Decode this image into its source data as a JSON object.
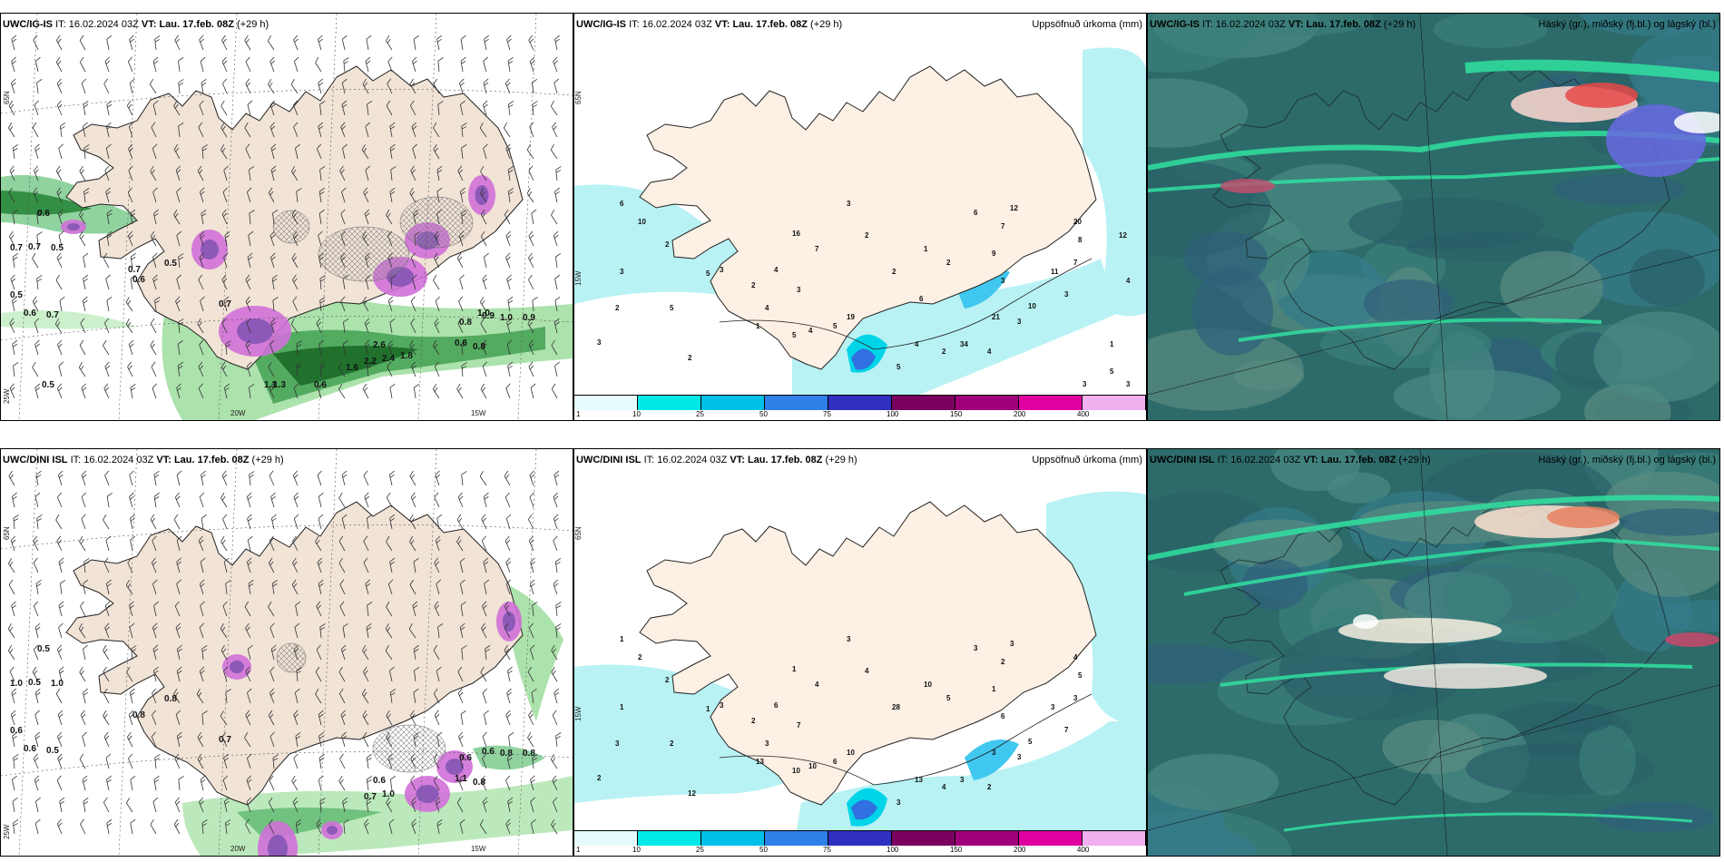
{
  "panels": [
    {
      "id": "tl",
      "model": "UWC/IG-IS",
      "it_label": "IT:",
      "it_value": "16.02.2024 03Z",
      "vt_label": "VT:",
      "vt_value": "Lau. 17.feb. 08Z",
      "lead": "(+29 h)",
      "title_right": "",
      "type": "wind-precip",
      "labels": [
        "0.6",
        "0.7",
        "0.7",
        "0.5",
        "0.5",
        "0.6",
        "0.7",
        "0.6",
        "0.5",
        "0.7",
        "0.8",
        "0.9",
        "1.0",
        "0.9",
        "0.8",
        "0.6",
        "2.6",
        "2.2",
        "2.4",
        "1.8",
        "1.6",
        "1.1",
        "0.6",
        "1.3",
        "0.5",
        "0.7",
        "1.0"
      ],
      "axis": {
        "lat": "65N",
        "lon1": "20W",
        "lon2": "15W",
        "lat2": "25W"
      }
    },
    {
      "id": "tm",
      "model": "UWC/IG-IS",
      "it_label": "IT:",
      "it_value": "16.02.2024 03Z",
      "vt_label": "VT:",
      "vt_value": "Lau. 17.feb. 08Z",
      "lead": "(+29 h)",
      "title_right": "Uppsöfnuð úrkoma (mm)",
      "type": "accum",
      "labels": [
        "6",
        "10",
        "2",
        "3",
        "2",
        "3",
        "5",
        "4",
        "5",
        "3",
        "16",
        "7",
        "4",
        "2",
        "3",
        "1",
        "2",
        "5",
        "4",
        "5",
        "19",
        "4",
        "5",
        "34",
        "21",
        "20",
        "8",
        "7",
        "11",
        "3",
        "10",
        "3",
        "4",
        "2",
        "3",
        "2",
        "1",
        "9",
        "7",
        "12",
        "6",
        "3",
        "2",
        "2",
        "6",
        "12",
        "4",
        "1",
        "5",
        "3",
        "3"
      ],
      "axis": {
        "lat": "65N",
        "lon": "15W"
      }
    },
    {
      "id": "tr",
      "model": "UWC/IG-IS",
      "it_label": "IT:",
      "it_value": "16.02.2024 03Z",
      "vt_label": "VT:",
      "vt_value": "Lau. 17.feb. 08Z",
      "lead": "(+29 h)",
      "title_right": "Háský (gr.), miðský (fj.bl.) og lágský (bl.)",
      "type": "cloud"
    },
    {
      "id": "bl",
      "model": "UWC/DINI ISL",
      "it_label": "IT:",
      "it_value": "16.02.2024 03Z",
      "vt_label": "VT:",
      "vt_value": "Lau. 17.feb. 08Z",
      "lead": "(+29 h)",
      "title_right": "",
      "type": "wind-precip",
      "labels": [
        "0.5",
        "1.0",
        "0.5",
        "1.0",
        "0.6",
        "0.6",
        "0.5",
        "0.8",
        "0.8",
        "0.7",
        "0.6",
        "0.6",
        "0.8",
        "0.8",
        "0.8",
        "1.1",
        "0.6",
        "0.7",
        "1.0"
      ],
      "axis": {
        "lat": "65N",
        "lon1": "20W",
        "lon2": "15W",
        "lat2": "25W"
      }
    },
    {
      "id": "bm",
      "model": "UWC/DINI ISL",
      "it_label": "IT:",
      "it_value": "16.02.2024 03Z",
      "vt_label": "VT:",
      "vt_value": "Lau. 17.feb. 08Z",
      "lead": "(+29 h)",
      "title_right": "Uppsöfnuð úrkoma (mm)",
      "type": "accum",
      "labels": [
        "1",
        "2",
        "2",
        "1",
        "3",
        "2",
        "2",
        "3",
        "1",
        "3",
        "1",
        "4",
        "6",
        "2",
        "7",
        "13",
        "12",
        "10",
        "10",
        "6",
        "10",
        "13",
        "3",
        "3",
        "3",
        "4",
        "5",
        "3",
        "3",
        "7",
        "5",
        "3",
        "2",
        "4",
        "6",
        "5",
        "10",
        "1",
        "2",
        "3",
        "3",
        "3",
        "4",
        "28"
      ],
      "axis": {
        "lat": "65N",
        "lon": "15W"
      }
    },
    {
      "id": "br",
      "model": "UWC/DINI ISL",
      "it_label": "IT:",
      "it_value": "16.02.2024 03Z",
      "vt_label": "VT:",
      "vt_value": "Lau. 17.feb. 08Z",
      "lead": "(+29 h)",
      "title_right": "Háský (gr.), miðský (fj.bl.) og lágský (bl.)",
      "type": "cloud"
    }
  ],
  "colorbar": {
    "ticks": [
      "1",
      "10",
      "25",
      "50",
      "75",
      "100",
      "150",
      "200",
      "400"
    ],
    "colors": [
      "#e6fbfb",
      "#00e8e8",
      "#00c0e8",
      "#2f80e8",
      "#3030c0",
      "#7a0060",
      "#a0007a",
      "#e000a0",
      "#f0b0f0"
    ]
  }
}
